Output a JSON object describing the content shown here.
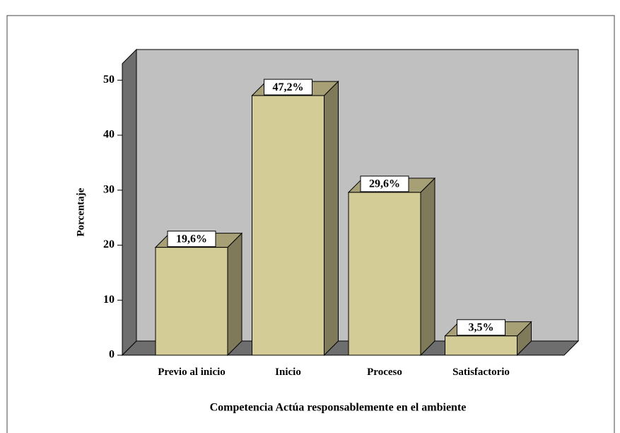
{
  "chart_data": {
    "type": "bar3d",
    "categories": [
      "Previo al inicio",
      "Inicio",
      "Proceso",
      "Satisfactorio"
    ],
    "values": [
      19.6,
      47.2,
      29.6,
      3.5
    ],
    "value_labels": [
      "19,6%",
      "47,2%",
      "29,6%",
      "3,5%"
    ],
    "color": "#d3cc96",
    "ylim": [
      0,
      53
    ],
    "yticks": [
      0,
      10,
      20,
      30,
      40,
      50
    ],
    "y_label": "Porcentaje",
    "x_label": "Competencia Actúa responsablemente en el ambiente"
  }
}
